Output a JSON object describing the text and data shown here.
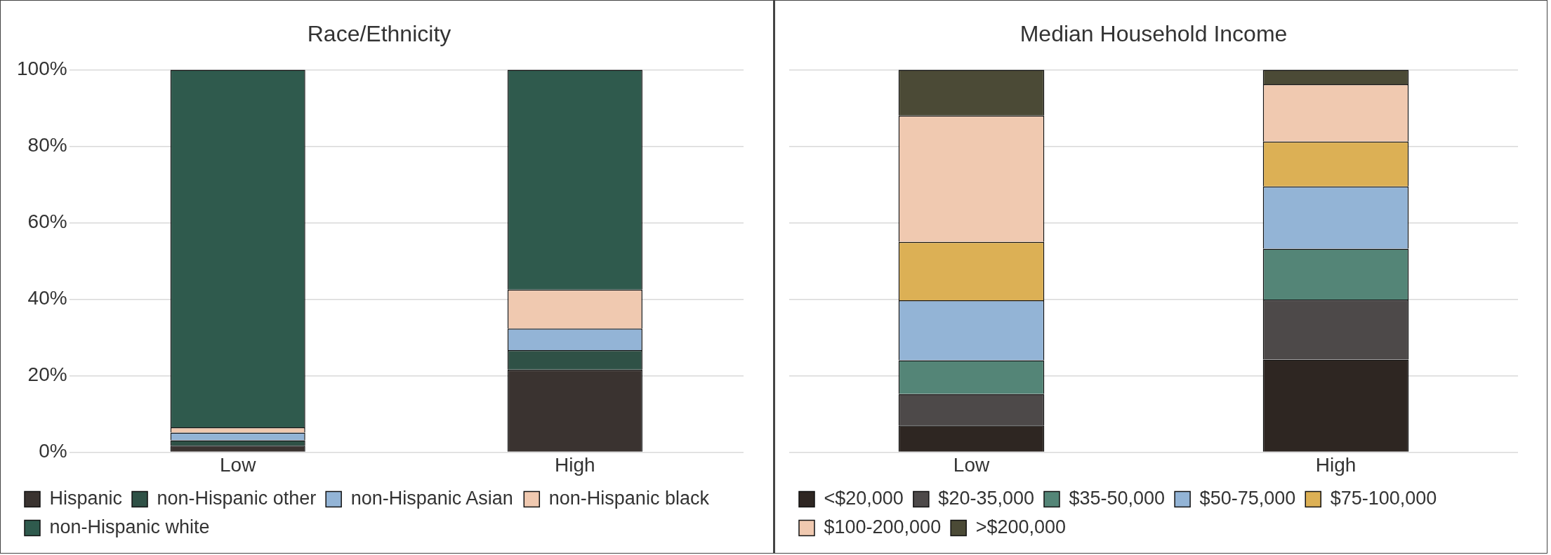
{
  "chart_data": [
    {
      "type": "bar",
      "title": "Race/Ethnicity",
      "categories": [
        "Low",
        "High"
      ],
      "stacked": true,
      "ylim": [
        0,
        100
      ],
      "yticks": [
        {
          "value": 0,
          "label": "0%"
        },
        {
          "value": 20,
          "label": "20%"
        },
        {
          "value": 40,
          "label": "40%"
        },
        {
          "value": 60,
          "label": "60%"
        },
        {
          "value": 80,
          "label": "80%"
        },
        {
          "value": 100,
          "label": "100%"
        }
      ],
      "grid": "y",
      "legend": "bottom",
      "series": [
        {
          "name": "Hispanic",
          "color": "#3a3330",
          "values": [
            1.7,
            21.6
          ]
        },
        {
          "name": "non-Hispanic other",
          "color": "#2f5146",
          "values": [
            1.4,
            5.1
          ]
        },
        {
          "name": "non-Hispanic Asian",
          "color": "#93b4d6",
          "values": [
            2.0,
            5.6
          ]
        },
        {
          "name": "non-Hispanic black",
          "color": "#f0c9b0",
          "values": [
            1.4,
            10.2
          ]
        },
        {
          "name": "non-Hispanic white",
          "color": "#2f5a4d",
          "values": [
            93.5,
            57.5
          ]
        }
      ]
    },
    {
      "type": "bar",
      "title": "Median Household Income",
      "categories": [
        "Low",
        "High"
      ],
      "stacked": true,
      "ylim": [
        0,
        100
      ],
      "yticks": [
        0,
        20,
        40,
        60,
        80,
        100
      ],
      "tick_labels": "x",
      "grid": "y",
      "legend": "bottom",
      "series": [
        {
          "name": "<$20,000",
          "color": "#2e2622",
          "values": [
            7,
            24.2
          ]
        },
        {
          "name": "$20-35,000",
          "color": "#4d4949",
          "values": [
            8.2,
            15.7
          ]
        },
        {
          "name": "$35-50,000",
          "color": "#548577",
          "values": [
            8.8,
            13.3
          ]
        },
        {
          "name": "$50-75,000",
          "color": "#93b4d6",
          "values": [
            15.7,
            16.3
          ]
        },
        {
          "name": "$75-100,000",
          "color": "#dcb055",
          "values": [
            15.3,
            11.7
          ]
        },
        {
          "name": "$100-200,000",
          "color": "#f0c9b0",
          "values": [
            33,
            15
          ]
        },
        {
          "name": ">$200,000",
          "color": "#4b4a36",
          "values": [
            12,
            3.8
          ]
        }
      ]
    }
  ]
}
